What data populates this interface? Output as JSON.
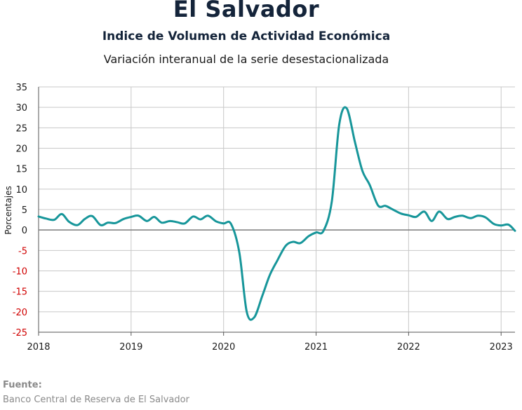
{
  "header": {
    "title": "El Salvador",
    "subtitle": "Indice de Volumen de  Actividad Económica",
    "subtitle2": "Variación interanual de la serie desestacionalizada"
  },
  "footer": {
    "source_label": "Fuente:",
    "source_text": "Banco Central de Reserva de El Salvador"
  },
  "colors": {
    "line": "#17969a",
    "grid": "#c8c8c8",
    "zero_line": "#7a7a7a",
    "negative_tick": "#d00000",
    "positive_tick": "#1a1a1a"
  },
  "chart_data": {
    "type": "line",
    "title": "El Salvador",
    "subtitle": "Indice de Volumen de  Actividad Económica",
    "xlabel": "",
    "ylabel": "Porcentajes",
    "xlim": [
      2018.0,
      2023.15
    ],
    "ylim": [
      -25,
      35
    ],
    "yticks": [
      35,
      30,
      25,
      20,
      15,
      10,
      5,
      0,
      -5,
      -10,
      -15,
      -20,
      -25
    ],
    "xticks": [
      "2018",
      "2019",
      "2020",
      "2021",
      "2022",
      "2023"
    ],
    "grid": true,
    "legend": "none",
    "series": [
      {
        "x": [
          2018.0,
          2018.08,
          2018.17,
          2018.25,
          2018.33,
          2018.42,
          2018.5,
          2018.58,
          2018.67,
          2018.75,
          2018.83,
          2018.92,
          2019.0,
          2019.08,
          2019.17,
          2019.25,
          2019.33,
          2019.42,
          2019.5,
          2019.58,
          2019.67,
          2019.75,
          2019.83,
          2019.92,
          2020.0,
          2020.08,
          2020.17,
          2020.25,
          2020.33,
          2020.42,
          2020.5,
          2020.58,
          2020.67,
          2020.75,
          2020.83,
          2020.92,
          2021.0,
          2021.08,
          2021.17,
          2021.25,
          2021.33,
          2021.42,
          2021.5,
          2021.58,
          2021.67,
          2021.75,
          2021.83,
          2021.92,
          2022.0,
          2022.08,
          2022.17,
          2022.25,
          2022.33,
          2022.42,
          2022.5,
          2022.58,
          2022.67,
          2022.75,
          2022.83,
          2022.92,
          2023.0,
          2023.08,
          2023.15
        ],
        "values": [
          3.3,
          2.8,
          2.5,
          3.9,
          2.0,
          1.2,
          2.7,
          3.4,
          1.2,
          1.8,
          1.7,
          2.7,
          3.2,
          3.5,
          2.2,
          3.2,
          1.8,
          2.2,
          1.9,
          1.6,
          3.3,
          2.6,
          3.5,
          2.1,
          1.6,
          1.5,
          -5.5,
          -20.0,
          -21.4,
          -16.0,
          -11.0,
          -7.5,
          -3.9,
          -2.9,
          -3.2,
          -1.5,
          -0.6,
          -0.2,
          7.0,
          25.8,
          29.8,
          21.5,
          14.5,
          11.0,
          6.0,
          5.9,
          5.0,
          4.0,
          3.6,
          3.2,
          4.5,
          2.2,
          4.5,
          2.7,
          3.2,
          3.5,
          2.9,
          3.5,
          3.1,
          1.5,
          1.1,
          1.3,
          -0.2
        ]
      }
    ]
  }
}
